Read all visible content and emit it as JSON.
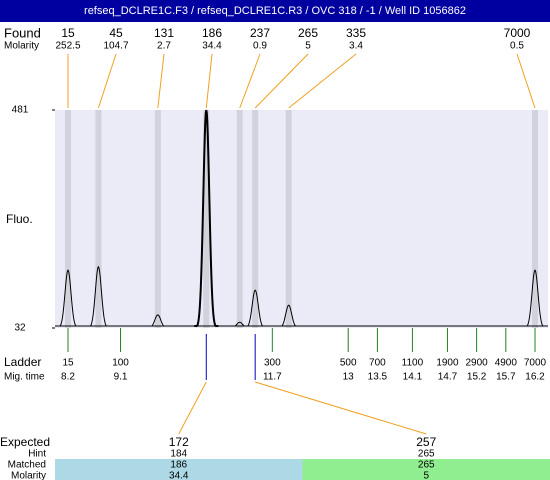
{
  "chart_data": {
    "type": "electropherogram",
    "title": "refseq_DCLRE1C.F3 / refseq_DCLRE1C.R3 / OVC 318 / -1 / Well ID 1056862",
    "ylabel": "Fluo.",
    "ylim": [
      32,
      481
    ],
    "yticks": [
      32,
      481
    ],
    "found_label": "Found",
    "molarity_label": "Molarity",
    "found": [
      15,
      45,
      131,
      186,
      237,
      265,
      335,
      7000
    ],
    "molarity": [
      252.5,
      104.7,
      2.7,
      34.4,
      0.9,
      5,
      3.4,
      0.5
    ],
    "peak_heights": [
      151,
      158,
      59,
      481,
      44,
      110,
      79,
      151
    ],
    "ladder_label": "Ladder",
    "mig_time_label": "Mig. time",
    "ladder": [
      15,
      100,
      300,
      500,
      700,
      1100,
      1900,
      2900,
      4900,
      7000
    ],
    "mig_times": [
      8.2,
      9.1,
      11.7,
      13,
      13.5,
      14.1,
      14.7,
      15.2,
      15.7,
      16.2
    ],
    "expected_label": "Expected",
    "hint_label": "Hint",
    "matched_label": "Matched",
    "matched_molarity_label": "Molarity",
    "expected": [
      {
        "expected": 172,
        "hint": 184,
        "matched": 186,
        "molarity": 34.4,
        "color": "#add8e6"
      },
      {
        "expected": 257,
        "hint": 265,
        "matched": 265,
        "molarity": 5,
        "color": "#90ee90"
      }
    ]
  }
}
